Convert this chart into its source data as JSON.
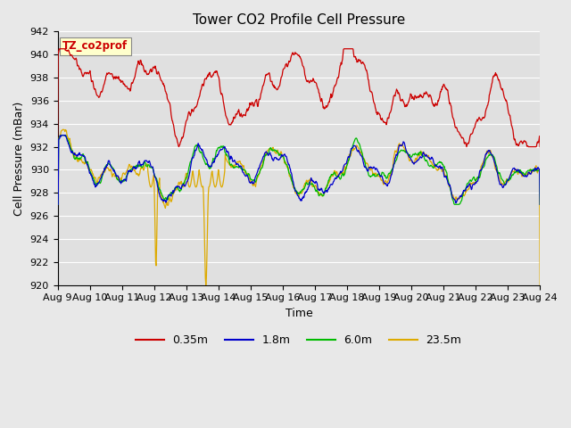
{
  "title": "Tower CO2 Profile Cell Pressure",
  "xlabel": "Time",
  "ylabel": "Cell Pressure (mBar)",
  "ylim": [
    920,
    942
  ],
  "yticks": [
    920,
    922,
    924,
    926,
    928,
    930,
    932,
    934,
    936,
    938,
    940,
    942
  ],
  "xtick_labels": [
    "Aug 9",
    "Aug 10",
    "Aug 11",
    "Aug 12",
    "Aug 13",
    "Aug 14",
    "Aug 15",
    "Aug 16",
    "Aug 17",
    "Aug 18",
    "Aug 19",
    "Aug 20",
    "Aug 21",
    "Aug 22",
    "Aug 23",
    "Aug 24"
  ],
  "legend_labels": [
    "0.35m",
    "1.8m",
    "6.0m",
    "23.5m"
  ],
  "line_colors": [
    "#cc0000",
    "#0000cc",
    "#00bb00",
    "#ddaa00"
  ],
  "bg_color": "#e8e8e8",
  "plot_bg_color": "#e0e0e0",
  "grid_color": "#ffffff",
  "annotation_text": "TZ_co2prof",
  "annotation_box_color": "#ffffcc",
  "annotation_text_color": "#cc0000",
  "title_fontsize": 11,
  "axis_fontsize": 9,
  "tick_fontsize": 8
}
